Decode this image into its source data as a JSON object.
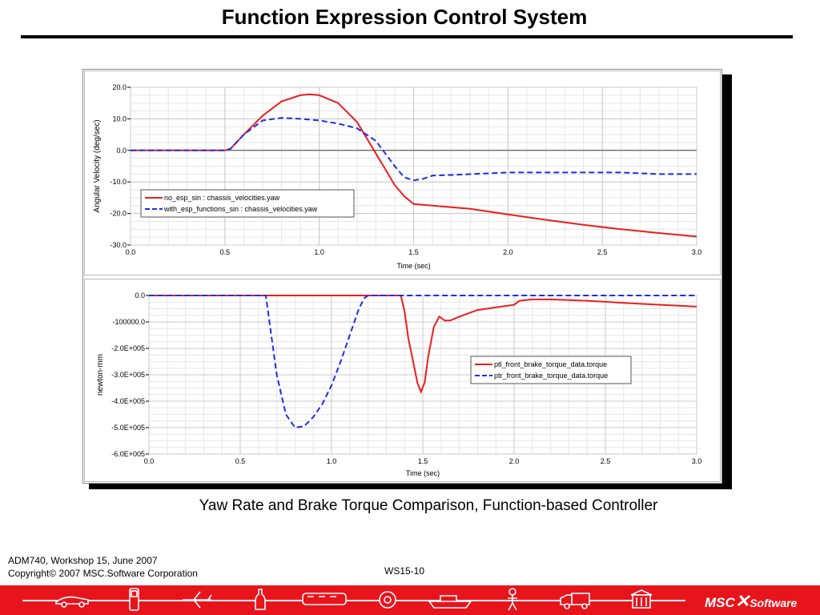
{
  "page": {
    "title": "Function Expression Control System",
    "caption": "Yaw Rate and Brake Torque Comparison, Function-based Controller",
    "footer_line1": "ADM740, Workshop 15, June 2007",
    "footer_line2": "Copyright©  2007 MSC.Software Corporation",
    "page_number": "WS15-10",
    "brand_text": "MSC",
    "brand_text2": "Software"
  },
  "bottom_bar_icons": [
    "race-car-icon",
    "phone-icon",
    "airplane-icon",
    "bottle-icon",
    "train-icon",
    "gear-icon",
    "ship-icon",
    "person-icon",
    "truck-icon",
    "building-icon"
  ],
  "chart_data": [
    {
      "type": "line",
      "xlabel": "Time (sec)",
      "ylabel": "Angular Velocity (deg/sec)",
      "xlim": [
        0,
        3
      ],
      "ylim": [
        -30,
        20
      ],
      "x_ticks": [
        "0.0",
        "0.5",
        "1.0",
        "1.5",
        "2.0",
        "2.5",
        "3.0"
      ],
      "y_ticks": [
        "20.0",
        "10.0",
        "0.0",
        "-10.0",
        "-20.0",
        "-30.0"
      ],
      "x_tick_values": [
        0,
        0.5,
        1,
        1.5,
        2,
        2.5,
        3
      ],
      "y_tick_values": [
        20,
        10,
        0,
        -10,
        -20,
        -30
      ],
      "grid": true,
      "legend_position": "lower-left",
      "series": [
        {
          "name": "no_esp_sin : chassis_velocities.yaw",
          "color": "#ee1c1c",
          "dash": "solid",
          "x": [
            0,
            0.5,
            0.53,
            0.6,
            0.7,
            0.8,
            0.9,
            0.95,
            1.0,
            1.1,
            1.2,
            1.25,
            1.3,
            1.35,
            1.4,
            1.45,
            1.5,
            1.6,
            1.7,
            1.8,
            2.0,
            2.2,
            2.4,
            2.6,
            2.8,
            3.0
          ],
          "y": [
            0,
            0,
            0.5,
            5,
            11,
            15.5,
            17.5,
            17.8,
            17.5,
            15,
            9,
            4,
            -1,
            -6,
            -11,
            -14.5,
            -17,
            -17.5,
            -18,
            -18.5,
            -20.3,
            -22,
            -23.6,
            -25,
            -26.2,
            -27.3
          ]
        },
        {
          "name": "with_esp_functions_sin : chassis_velocities.yaw",
          "color": "#1c2ee6",
          "dash": "dashed",
          "x": [
            0,
            0.5,
            0.53,
            0.6,
            0.7,
            0.8,
            0.9,
            1.0,
            1.1,
            1.2,
            1.3,
            1.35,
            1.4,
            1.45,
            1.5,
            1.55,
            1.6,
            1.7,
            2.0,
            2.3,
            2.5,
            2.6,
            2.8,
            3.0
          ],
          "y": [
            0,
            0,
            0.5,
            5,
            9.5,
            10.3,
            10,
            9.5,
            8.5,
            7,
            3,
            -1,
            -5,
            -8.5,
            -9.5,
            -9,
            -8,
            -7.8,
            -7,
            -7,
            -7,
            -7,
            -7.5,
            -7.5
          ]
        }
      ]
    },
    {
      "type": "line",
      "xlabel": "Time (sec)",
      "ylabel": "newton-mm",
      "xlim": [
        0,
        3
      ],
      "ylim": [
        -600000,
        0
      ],
      "x_ticks": [
        "0.0",
        "0.5",
        "1.0",
        "1.5",
        "2.0",
        "2.5",
        "3.0"
      ],
      "y_ticks": [
        "0.0",
        "-100000.0",
        "-2.0E+005",
        "-3.0E+005",
        "-4.0E+005",
        "-5.0E+005",
        "-6.0E+005"
      ],
      "x_tick_values": [
        0,
        0.5,
        1,
        1.5,
        2,
        2.5,
        3
      ],
      "y_tick_values": [
        0,
        -100000,
        -200000,
        -300000,
        -400000,
        -500000,
        -600000
      ],
      "grid": true,
      "legend_position": "right",
      "series": [
        {
          "name": "ptl_front_brake_torque_data.torque",
          "color": "#ee1c1c",
          "dash": "solid",
          "x": [
            0,
            1.38,
            1.4,
            1.42,
            1.45,
            1.47,
            1.49,
            1.51,
            1.53,
            1.56,
            1.59,
            1.62,
            1.65,
            1.7,
            1.8,
            1.9,
            2.0,
            2.03,
            2.1,
            2.2,
            2.4,
            2.6,
            2.8,
            3.0
          ],
          "y": [
            0,
            0,
            -60000,
            -160000,
            -260000,
            -330000,
            -365000,
            -330000,
            -230000,
            -120000,
            -80000,
            -95000,
            -95000,
            -80000,
            -55000,
            -45000,
            -35000,
            -20000,
            -15000,
            -15000,
            -20000,
            -28000,
            -35000,
            -42000
          ]
        },
        {
          "name": "ptr_front_brake_torque_data.torque",
          "color": "#1c2ee6",
          "dash": "dashed",
          "x": [
            0,
            0.64,
            0.66,
            0.7,
            0.75,
            0.8,
            0.85,
            0.9,
            0.95,
            1.0,
            1.05,
            1.1,
            1.15,
            1.18,
            1.2,
            3.0
          ],
          "y": [
            0,
            0,
            -100000,
            -300000,
            -450000,
            -500000,
            -495000,
            -460000,
            -410000,
            -340000,
            -250000,
            -150000,
            -50000,
            -10000,
            0,
            0
          ]
        }
      ]
    }
  ]
}
